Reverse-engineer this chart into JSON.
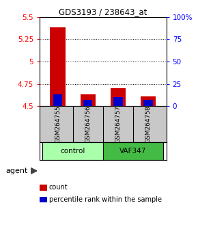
{
  "title": "GDS3193 / 238643_at",
  "samples": [
    "GSM264755",
    "GSM264756",
    "GSM264757",
    "GSM264758"
  ],
  "bar_bottom": 4.5,
  "red_tops": [
    5.38,
    4.63,
    4.7,
    4.61
  ],
  "blue_tops": [
    4.63,
    4.575,
    4.6,
    4.572
  ],
  "red_color": "#CC0000",
  "blue_color": "#0000CC",
  "ylim_left": [
    4.5,
    5.5
  ],
  "ylim_right": [
    0,
    100
  ],
  "yticks_left": [
    4.5,
    4.75,
    5.0,
    5.25,
    5.5
  ],
  "yticks_right": [
    0,
    25,
    50,
    75,
    100
  ],
  "ytick_labels_left": [
    "4.5",
    "4.75",
    "5",
    "5.25",
    "5.5"
  ],
  "ytick_labels_right": [
    "0",
    "25",
    "50",
    "75",
    "100%"
  ],
  "grid_ticks": [
    4.75,
    5.0,
    5.25
  ],
  "bar_width": 0.5,
  "blue_bar_width": 0.3,
  "sample_bg_color": "#C8C8C8",
  "control_color": "#AAFFAA",
  "vaf_color": "#44BB44",
  "legend_items": [
    {
      "color": "#CC0000",
      "label": "count"
    },
    {
      "color": "#0000CC",
      "label": "percentile rank within the sample"
    }
  ]
}
